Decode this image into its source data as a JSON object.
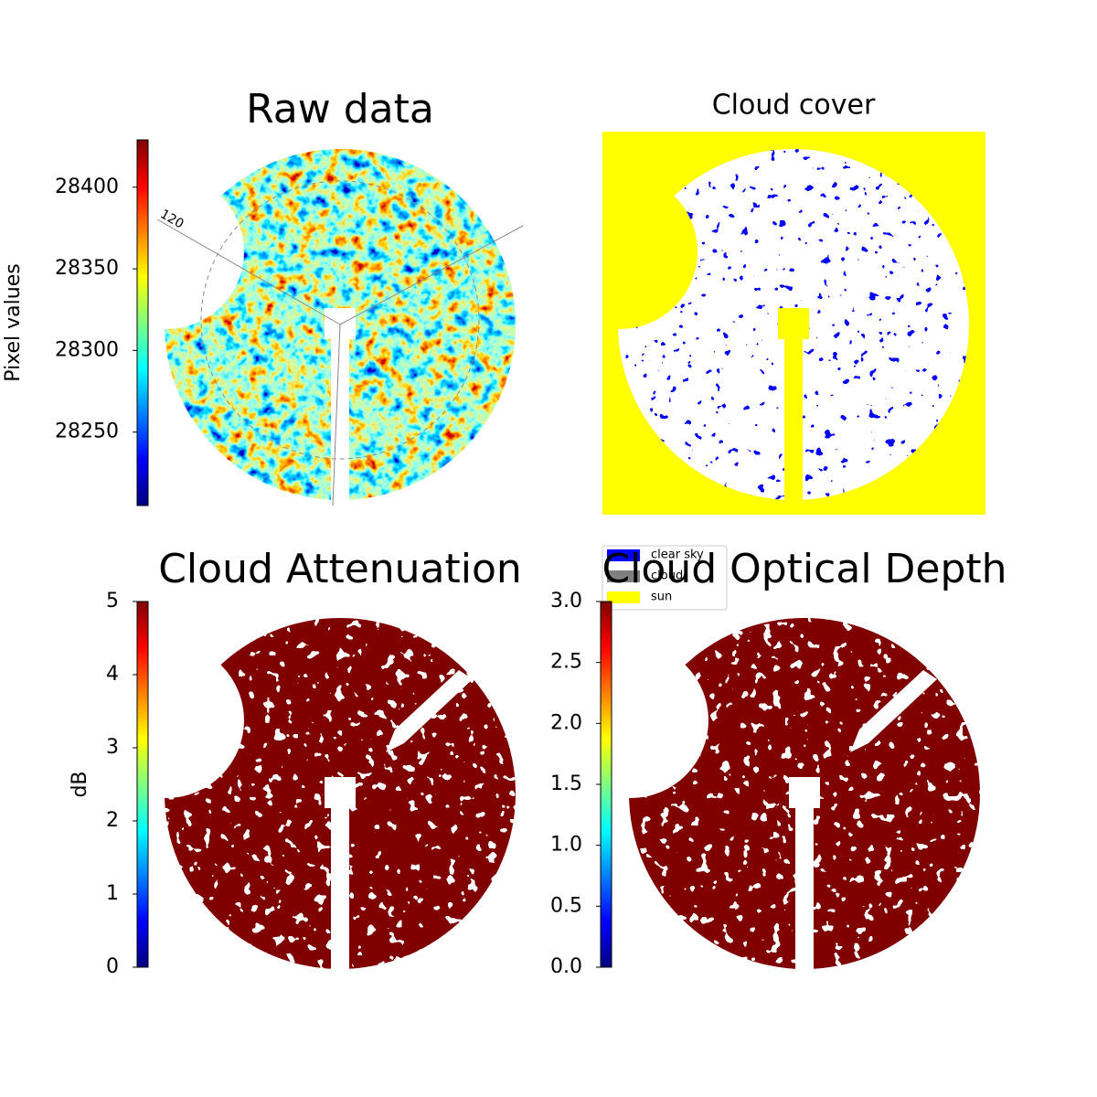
{
  "chart_data": [
    {
      "type": "image",
      "title": "Raw data",
      "colorbar": {
        "label": "Pixel values",
        "colormap": "jet",
        "ylim": [
          28205,
          28429
        ],
        "yticks": [
          28250,
          28300,
          28350,
          28400
        ]
      },
      "annotations": [
        "120"
      ]
    },
    {
      "type": "image",
      "title": "Cloud cover",
      "legend": {
        "series": [
          {
            "name": "clear sky",
            "color": "#0000ff"
          },
          {
            "name": "cloud",
            "color": "#808080"
          },
          {
            "name": "sun",
            "color": "#ffff00"
          }
        ]
      }
    },
    {
      "type": "image",
      "title": "Cloud Attenuation",
      "colorbar": {
        "label": "dB",
        "colormap": "jet",
        "ylim": [
          0,
          5
        ],
        "yticks": [
          0,
          1,
          2,
          3,
          4,
          5
        ]
      }
    },
    {
      "type": "image",
      "title": "Cloud Optical Depth",
      "colorbar": {
        "colormap": "jet",
        "ylim": [
          0,
          3
        ],
        "yticks": [
          {
            "value": 0,
            "label": "0.0"
          },
          {
            "value": 0.5,
            "label": "0.5"
          },
          {
            "value": 1,
            "label": "1.0"
          },
          {
            "value": 1.5,
            "label": "1.5"
          },
          {
            "value": 2,
            "label": "2.0"
          },
          {
            "value": 2.5,
            "label": "2.5"
          },
          {
            "value": 3,
            "label": "3.0"
          }
        ]
      }
    }
  ]
}
